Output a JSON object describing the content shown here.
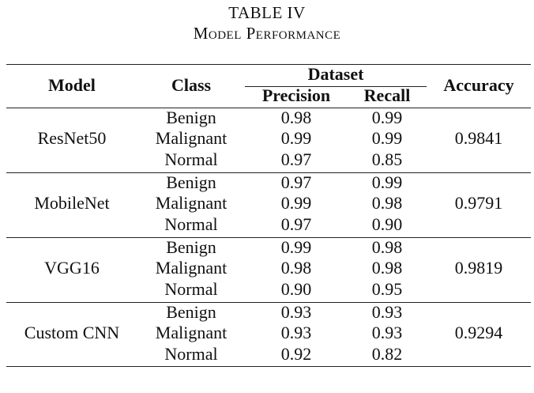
{
  "caption": {
    "label": "TABLE IV",
    "title": "Model Performance"
  },
  "headers": {
    "model": "Model",
    "class": "Class",
    "dataset": "Dataset",
    "precision": "Precision",
    "recall": "Recall",
    "accuracy": "Accuracy"
  },
  "groups": [
    {
      "model": "ResNet50",
      "accuracy": "0.9841",
      "rows": [
        {
          "class": "Benign",
          "precision": "0.98",
          "recall": "0.99"
        },
        {
          "class": "Malignant",
          "precision": "0.99",
          "recall": "0.99"
        },
        {
          "class": "Normal",
          "precision": "0.97",
          "recall": "0.85"
        }
      ]
    },
    {
      "model": "MobileNet",
      "accuracy": "0.9791",
      "rows": [
        {
          "class": "Benign",
          "precision": "0.97",
          "recall": "0.99"
        },
        {
          "class": "Malignant",
          "precision": "0.99",
          "recall": "0.98"
        },
        {
          "class": "Normal",
          "precision": "0.97",
          "recall": "0.90"
        }
      ]
    },
    {
      "model": "VGG16",
      "accuracy": "0.9819",
      "rows": [
        {
          "class": "Benign",
          "precision": "0.99",
          "recall": "0.98"
        },
        {
          "class": "Malignant",
          "precision": "0.98",
          "recall": "0.98"
        },
        {
          "class": "Normal",
          "precision": "0.90",
          "recall": "0.95"
        }
      ]
    },
    {
      "model": "Custom CNN",
      "accuracy": "0.9294",
      "rows": [
        {
          "class": "Benign",
          "precision": "0.93",
          "recall": "0.93"
        },
        {
          "class": "Malignant",
          "precision": "0.93",
          "recall": "0.93"
        },
        {
          "class": "Normal",
          "precision": "0.92",
          "recall": "0.82"
        }
      ]
    }
  ]
}
